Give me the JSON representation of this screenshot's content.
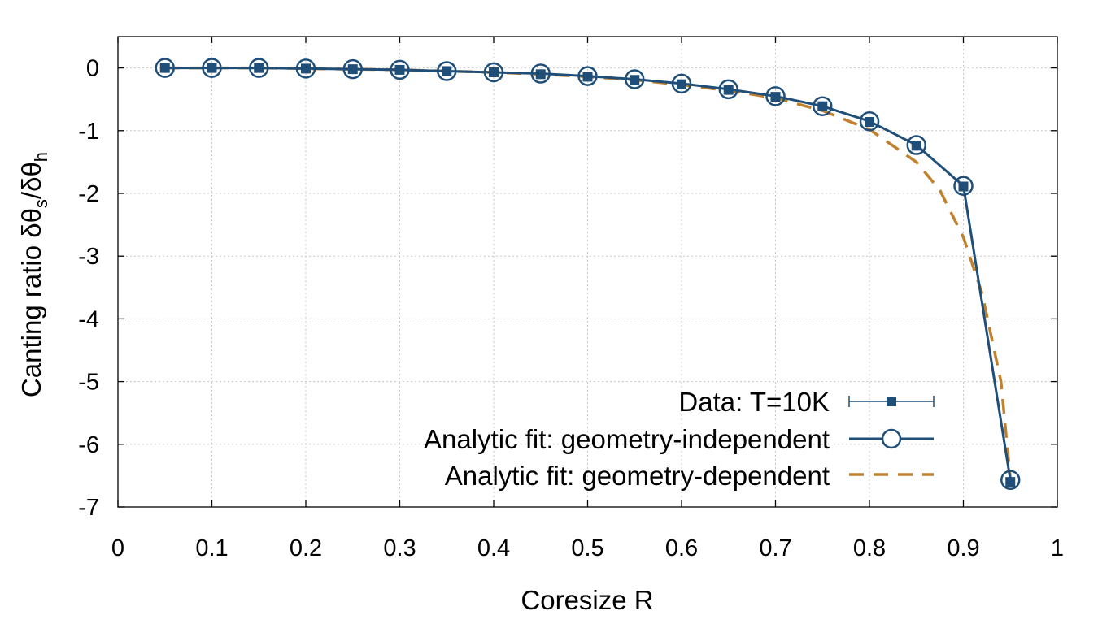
{
  "chart_data": {
    "type": "line",
    "title": "",
    "xlabel": "Coresize R",
    "ylabel_main": "Canting ratio δθ",
    "ylabel_sub1": "s",
    "ylabel_mid": "/δθ",
    "ylabel_sub2": "h",
    "xlim": [
      0,
      1
    ],
    "ylim": [
      -7,
      0.5
    ],
    "xticks": [
      0,
      0.1,
      0.2,
      0.3,
      0.4,
      0.5,
      0.6,
      0.7,
      0.8,
      0.9,
      1
    ],
    "xtick_labels": [
      "0",
      "0.1",
      "0.2",
      "0.3",
      "0.4",
      "0.5",
      "0.6",
      "0.7",
      "0.8",
      "0.9",
      "1"
    ],
    "yticks": [
      0,
      -1,
      -2,
      -3,
      -4,
      -5,
      -6,
      -7
    ],
    "ytick_labels": [
      "0",
      "-1",
      "-2",
      "-3",
      "-4",
      "-5",
      "-6",
      "-7"
    ],
    "grid": true,
    "legend_position": "bottom-right",
    "series": [
      {
        "name": "Data: T=10K",
        "style": "errorbar-square",
        "color": "#1f4e79",
        "x": [
          0.05,
          0.1,
          0.15,
          0.2,
          0.25,
          0.3,
          0.35,
          0.4,
          0.45,
          0.5,
          0.55,
          0.6,
          0.65,
          0.7,
          0.75,
          0.8,
          0.85,
          0.9,
          0.95
        ],
        "y": [
          0.0,
          0.0,
          0.0,
          -0.01,
          -0.02,
          -0.03,
          -0.05,
          -0.07,
          -0.1,
          -0.14,
          -0.19,
          -0.26,
          -0.35,
          -0.46,
          -0.61,
          -0.86,
          -1.24,
          -1.89,
          -6.6
        ],
        "err": [
          0,
          0,
          0,
          0,
          0,
          0,
          0,
          0,
          0,
          0,
          0,
          0,
          0,
          0,
          0,
          0,
          0,
          0,
          0.07
        ]
      },
      {
        "name": "Analytic fit: geometry-independent",
        "style": "line-circle",
        "color": "#1f4e79",
        "x": [
          0.05,
          0.1,
          0.15,
          0.2,
          0.25,
          0.3,
          0.35,
          0.4,
          0.45,
          0.5,
          0.55,
          0.6,
          0.65,
          0.7,
          0.75,
          0.8,
          0.85,
          0.9,
          0.95
        ],
        "y": [
          0.0,
          0.0,
          0.0,
          -0.01,
          -0.02,
          -0.03,
          -0.05,
          -0.07,
          -0.09,
          -0.13,
          -0.18,
          -0.25,
          -0.34,
          -0.45,
          -0.61,
          -0.85,
          -1.23,
          -1.88,
          -6.57
        ]
      },
      {
        "name": "Analytic fit: geometry-dependent",
        "style": "dashed",
        "color": "#c0812f",
        "x": [
          0.05,
          0.1,
          0.15,
          0.2,
          0.25,
          0.3,
          0.35,
          0.4,
          0.45,
          0.5,
          0.55,
          0.6,
          0.65,
          0.7,
          0.75,
          0.8,
          0.85,
          0.875,
          0.9,
          0.92,
          0.94,
          0.95
        ],
        "y": [
          0.0,
          0.0,
          0.0,
          -0.01,
          -0.02,
          -0.03,
          -0.05,
          -0.07,
          -0.1,
          -0.14,
          -0.19,
          -0.27,
          -0.36,
          -0.48,
          -0.68,
          -0.98,
          -1.5,
          -1.95,
          -2.7,
          -3.6,
          -5.0,
          -6.55
        ]
      }
    ]
  }
}
